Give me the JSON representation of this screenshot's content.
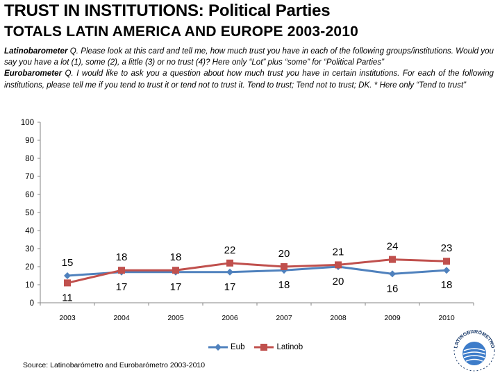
{
  "title": "TRUST IN INSTITUTIONS: Political Parties",
  "subtitle": "TOTALS LATIN AMERICA AND EUROPE 2003-2010",
  "note": {
    "latino_label": "Latinobarometer",
    "latino_text": " Q. Please look at this card and tell me, how much trust you have in each of the following groups/institutions. Would you say you have a lot (1), some (2), a little (3) or no trust (4)? Here only “Lot” plus “some” for “Political Parties”",
    "euro_label": "Eurobarometer",
    "euro_text": " Q. I would like to ask you a question about how much  trust you have in certain institutions. For each of the following institutions, please tell me if you tend to trust it or tend not to trust it. Tend to trust; Tend not to trust; DK. * Here only “Tend to trust”"
  },
  "source": "Source: Latinobarómetro and Eurobarómetro 2003-2010",
  "logo": {
    "description": "Latinobarómetro circular globe logo",
    "text": "LATINOBARÓMETRO"
  },
  "chart_data": {
    "type": "line",
    "x": [
      "2003",
      "2004",
      "2005",
      "2006",
      "2007",
      "2008",
      "2009",
      "2010"
    ],
    "ylim": [
      0,
      100
    ],
    "yticks": [
      0,
      10,
      20,
      30,
      40,
      50,
      60,
      70,
      80,
      90,
      100
    ],
    "grid": false,
    "legend_position": "bottom",
    "series": [
      {
        "name": "Eub",
        "color": "#4f81bd",
        "marker": "diamond",
        "values": [
          15,
          17,
          17,
          17,
          18,
          20,
          16,
          18
        ],
        "label_position": "mixed"
      },
      {
        "name": "Latinob",
        "color": "#c0504d",
        "marker": "square",
        "values": [
          11,
          18,
          18,
          22,
          20,
          21,
          24,
          23
        ],
        "label_position": "mixed"
      }
    ],
    "data_labels": {
      "above": [
        15,
        18,
        18,
        22,
        20,
        21,
        24,
        23
      ],
      "below": [
        11,
        17,
        17,
        17,
        18,
        20,
        16,
        18
      ]
    }
  }
}
